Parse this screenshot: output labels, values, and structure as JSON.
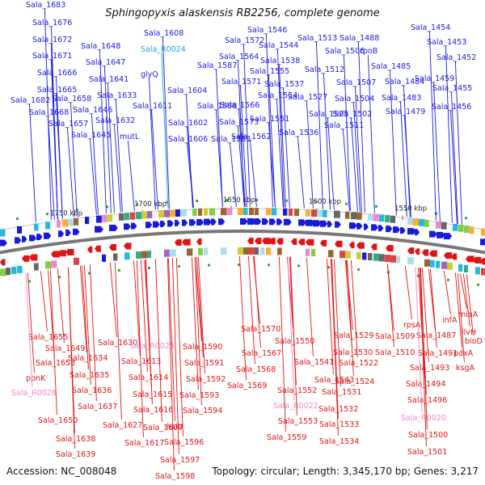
{
  "title": "Sphingopyxis alaskensis RB2256, complete genome",
  "accession": "Accession: NC_008048",
  "topology": "Topology: circular; Length: 3,345,170 bp; Genes: 3,217",
  "colors": {
    "forward": "#1a1adc",
    "reverse": "#e01414",
    "rna": "#ee88cc",
    "trna_label": "#1aa7d9",
    "backbone": "#777777"
  },
  "ticks": [
    "1750 kbp",
    "1700 kbp",
    "1650 kbp",
    "1600 kbp",
    "1550 kbp"
  ],
  "top_labels": [
    "Sala_1683",
    "Sala_1676",
    "Sala_1672",
    "Sala_1671",
    "Sala_1666",
    "Sala_1665",
    "Sala_1682",
    "Sala_1668",
    "Sala_1658",
    "Sala_1657",
    "Sala_1648",
    "Sala_1647",
    "Sala_1641",
    "Sala_1646",
    "Sala_1645",
    "Sala_1633",
    "Sala_1632",
    "mutL",
    "Sala_1608",
    "Sala_R0024",
    "glyQ",
    "Sala_1604",
    "Sala_1611",
    "Sala_1602",
    "Sala_1606",
    "Sala_1587",
    "Sala_1588",
    "Sala_1583",
    "Sala_1572",
    "Sala_1564",
    "Sala_1571",
    "Sala_1566",
    "Sala_1573",
    "Sala_1562",
    "Sala_1546",
    "Sala_1544",
    "Sala_1538",
    "Sala_1555",
    "Sala_1537",
    "Sala_1554",
    "Sala_1551",
    "Sala_1536",
    "Sala_1527",
    "Sala_1513",
    "Sala_1506",
    "Sala_1512",
    "Sala_1525",
    "Sala_1511",
    "Sala_1488",
    "rpoB",
    "Sala_1507",
    "Sala_1504",
    "Sala_1502",
    "Sala_1485",
    "Sala_1484",
    "Sala_1483",
    "Sala_1479",
    "Sala_1454",
    "Sala_1453",
    "Sala_1452",
    "Sala_1459",
    "Sala_1455",
    "Sala_1456"
  ],
  "bottom_labels": [
    "Sala_1655",
    "Sala_1649",
    "Sala_1653",
    "ppnK",
    "Sala_R0028",
    "Sala_1634",
    "Sala_1635",
    "Sala_1636",
    "Sala_1637",
    "Sala_1650",
    "Sala_1638",
    "Sala_1639",
    "Sala_1630",
    "Sala_R0025",
    "Sala_1613",
    "Sala_1614",
    "Sala_1615",
    "Sala_1616",
    "Sala_1627",
    "Sala_1617",
    "Sala_1607",
    "Sala_1590",
    "Sala_1591",
    "Sala_1592",
    "Sala_1593",
    "Sala_1594",
    "hslU",
    "Sala_1596",
    "Sala_1597",
    "Sala_1598",
    "Sala_1570",
    "Sala_1567",
    "Sala_1568",
    "Sala_1569",
    "Sala_1550",
    "Sala_1552",
    "Sala_R0022",
    "Sala_1553",
    "Sala_1559",
    "Sala_1529",
    "Sala_1530",
    "Sala_1541",
    "Sala_1543",
    "Sala_1522",
    "Sala_1524",
    "Sala_1531",
    "Sala_1532",
    "Sala_1533",
    "Sala_1534",
    "Sala_1509",
    "Sala_1510",
    "rpsA",
    "Sala_1487",
    "Sala_1491",
    "Sala_1493",
    "Sala_1494",
    "Sala_1496",
    "Sala_R0020",
    "Sala_1500",
    "Sala_1501",
    "infA",
    "miaA",
    "ilvH",
    "bioD",
    "pdxA",
    "ksgA"
  ]
}
